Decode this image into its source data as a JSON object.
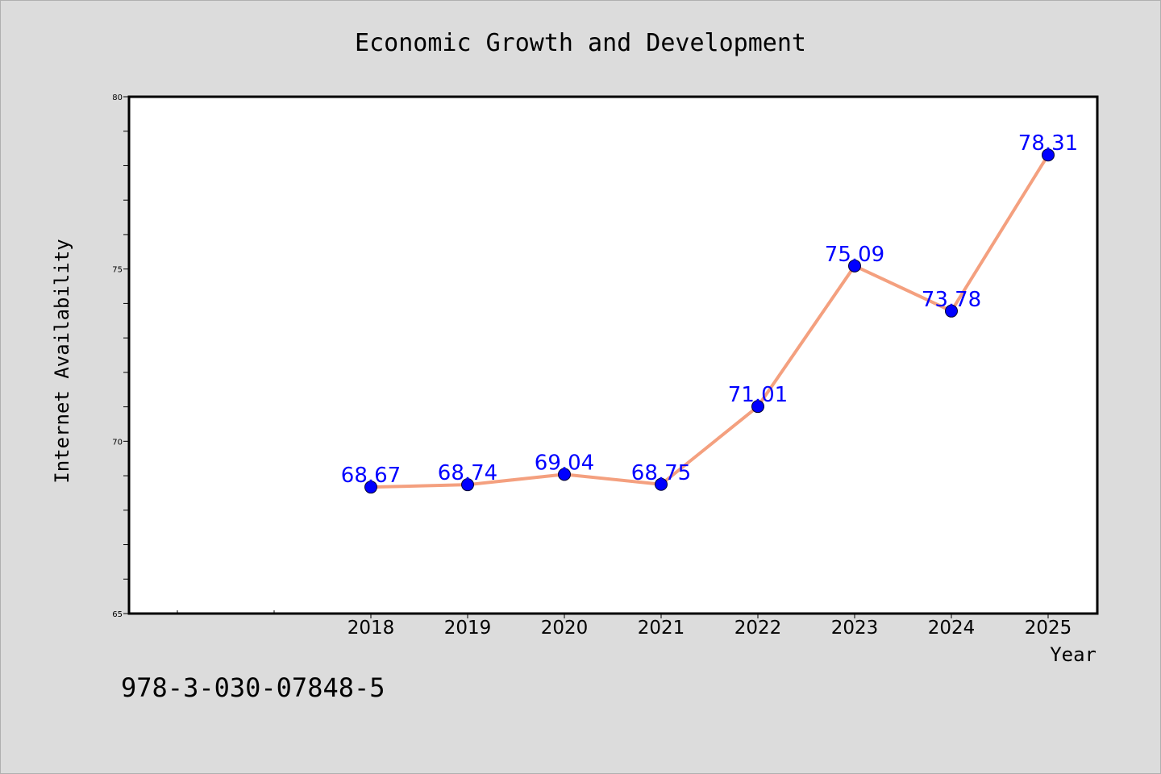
{
  "chart_data": {
    "type": "line",
    "title": "Economic Growth and Development",
    "xlabel": "Year",
    "ylabel": "Internet Availability",
    "x": [
      "2018",
      "2019",
      "2020",
      "2021",
      "2022",
      "2023",
      "2024",
      "2025"
    ],
    "series": [
      {
        "values": [
          68.67,
          68.74,
          69.04,
          68.75,
          71.01,
          75.09,
          73.78,
          78.31
        ]
      }
    ],
    "data_labels": [
      "68.67",
      "68.74",
      "69.04",
      "68.75",
      "71.01",
      "75.09",
      "73.78",
      "78.31"
    ],
    "ylim": [
      65,
      80
    ],
    "yticks": [
      "65",
      "70",
      "75",
      "80"
    ],
    "grid": false,
    "legend": "none",
    "colors": {
      "line": "#f4a07f",
      "marker": "#0000ff",
      "label": "#0000ff",
      "background": "#dcdcdc",
      "plot_background": "#ffffff"
    }
  },
  "footer": {
    "isbn": "978-3-030-07848-5"
  }
}
